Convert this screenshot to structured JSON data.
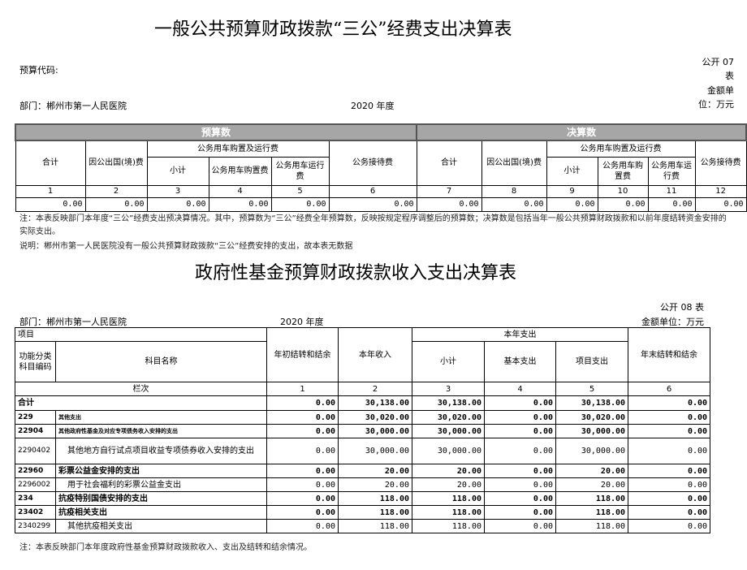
{
  "table1": {
    "title": "一般公共预算财政拨款“三公”经费支出决算表",
    "budget_code_label": "预算代码:",
    "form_no": "公开 07 表",
    "unit": "金额单位：万元",
    "department": "部门：郴州市第一人民医院",
    "year": "2020 年度",
    "group_budget": "预算数",
    "group_final": "决算数",
    "headers": {
      "total": "合计",
      "abroad": "因公出国(境)费",
      "vehicle": "公务用车购置及运行费",
      "subtotal": "小计",
      "vehicle_purchase": "公务用车购置费",
      "vehicle_run": "公务用车运行费",
      "reception": "公务接待费"
    },
    "col_numbers": [
      "1",
      "2",
      "3",
      "4",
      "5",
      "6",
      "7",
      "8",
      "9",
      "10",
      "11",
      "12"
    ],
    "values": [
      "0.00",
      "0.00",
      "0.00",
      "0.00",
      "0.00",
      "0.00",
      "0.00",
      "0.00",
      "0.00",
      "0.00",
      "0.00",
      "0.00"
    ],
    "note": "注：本表反映部门本年度“三公”经费支出预决算情况。其中，预算数为“三公”经费全年预算数，反映按规定程序调整后的预算数；决算数是包括当年一般公共预算财政拨款和以前年度结转资金安排的实际支出。",
    "explain": "说明：郴州市第一人民医院没有一般公共预算财政拨款“三公”经费安排的支出，故本表无数据"
  },
  "table2": {
    "title": "政府性基金预算财政拨款收入支出决算表",
    "form_no": "公开 08 表",
    "department": "部门：郴州市第一人民医院",
    "year": "2020 年度",
    "unit": "金额单位：万元",
    "headers": {
      "item": "项目",
      "code": "功能分类科目编码",
      "name": "科目名称",
      "opening": "年初结转和结余",
      "income": "本年收入",
      "expense": "本年支出",
      "subtotal": "小计",
      "basic": "基本支出",
      "project": "项目支出",
      "closing": "年末结转和结余",
      "col_label": "栏次"
    },
    "col_numbers": [
      "1",
      "2",
      "3",
      "4",
      "5",
      "6"
    ],
    "total": {
      "label": "合计",
      "values": [
        "0.00",
        "30,138.00",
        "30,138.00",
        "0.00",
        "30,138.00",
        "0.00"
      ]
    },
    "rows": [
      {
        "code": "229",
        "name": "其他支出",
        "bold": true,
        "tiny": true,
        "values": [
          "0.00",
          "30,020.00",
          "30,020.00",
          "0.00",
          "30,020.00",
          "0.00"
        ]
      },
      {
        "code": "22904",
        "name": "其他政府性基金及对应专项债务收入安排的支出",
        "bold": true,
        "tiny": true,
        "values": [
          "0.00",
          "30,000.00",
          "30,000.00",
          "0.00",
          "30,000.00",
          "0.00"
        ]
      },
      {
        "code": "2290402",
        "name": "其他地方自行试点项目收益专项债券收入安排的支出",
        "bold": false,
        "tall": true,
        "values": [
          "0.00",
          "30,000.00",
          "30,000.00",
          "0.00",
          "30,000.00",
          "0.00"
        ]
      },
      {
        "code": "22960",
        "name": "彩票公益金安排的支出",
        "bold": true,
        "values": [
          "0.00",
          "20.00",
          "20.00",
          "0.00",
          "20.00",
          "0.00"
        ]
      },
      {
        "code": "2296002",
        "name": "用于社会福利的彩票公益金支出",
        "bold": false,
        "values": [
          "0.00",
          "20.00",
          "20.00",
          "0.00",
          "20.00",
          "0.00"
        ]
      },
      {
        "code": "234",
        "name": "抗疫特别国债安排的支出",
        "bold": true,
        "values": [
          "0.00",
          "118.00",
          "118.00",
          "0.00",
          "118.00",
          "0.00"
        ]
      },
      {
        "code": "23402",
        "name": "抗疫相关支出",
        "bold": true,
        "values": [
          "0.00",
          "118.00",
          "118.00",
          "0.00",
          "118.00",
          "0.00"
        ]
      },
      {
        "code": "2340299",
        "name": "其他抗疫相关支出",
        "bold": false,
        "values": [
          "0.00",
          "118.00",
          "118.00",
          "0.00",
          "118.00",
          "0.00"
        ]
      }
    ],
    "note": "注：本表反映部门本年度政府性基金预算财政拨款收入、支出及结转和结余情况。"
  }
}
